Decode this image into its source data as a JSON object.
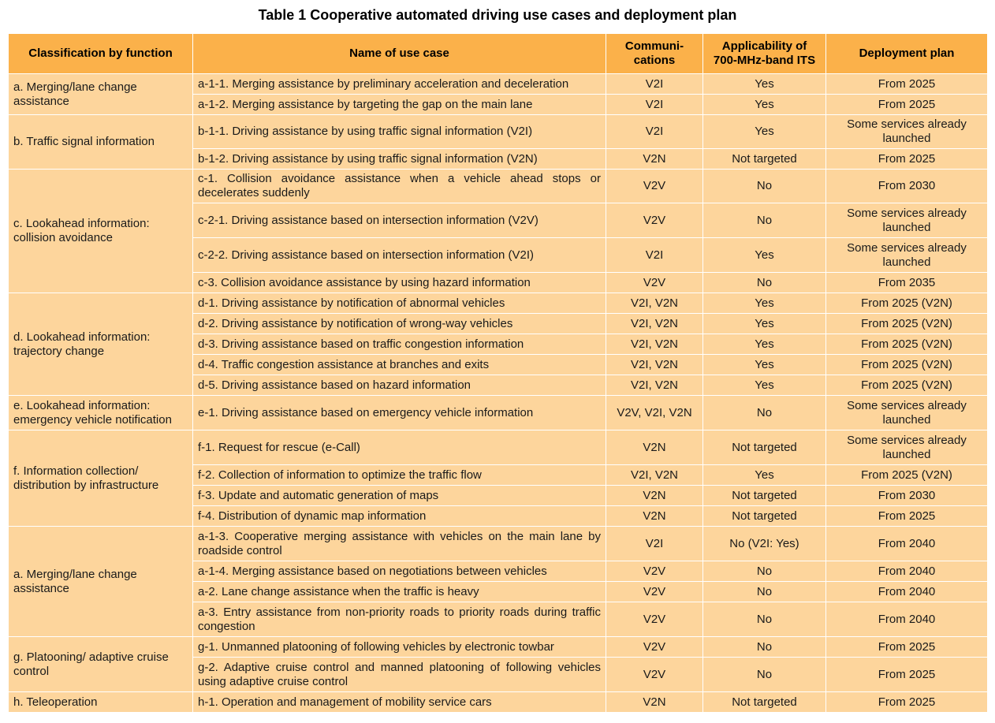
{
  "title": "Table 1  Cooperative automated driving use cases and deployment plan",
  "colors": {
    "header_bg": "#fbb14a",
    "cell_bg": "#fdd59c",
    "border": "#ffffff"
  },
  "headers": {
    "classification": "Classification by function",
    "use_case": "Name of use case",
    "communications": "Communi-\ncations",
    "applicability": "Applicability of\n700-MHz-band ITS",
    "deployment": "Deployment plan"
  },
  "groups": [
    {
      "classification": "a. Merging/lane change assistance",
      "rows": [
        {
          "use_case": "a-1-1. Merging assistance by preliminary acceleration and deceleration",
          "comm": "V2I",
          "appl": "Yes",
          "deploy": "From 2025"
        },
        {
          "use_case": "a-1-2. Merging assistance by targeting the gap on the main lane",
          "comm": "V2I",
          "appl": "Yes",
          "deploy": "From 2025"
        }
      ]
    },
    {
      "classification": "b. Traffic signal information",
      "rows": [
        {
          "use_case": "b-1-1. Driving assistance by using traffic signal information (V2I)",
          "comm": "V2I",
          "appl": "Yes",
          "deploy": "Some services already launched"
        },
        {
          "use_case": "b-1-2. Driving assistance by using traffic signal information (V2N)",
          "comm": "V2N",
          "appl": "Not targeted",
          "deploy": "From 2025"
        }
      ]
    },
    {
      "classification": "c. Lookahead information: collision avoidance",
      "rows": [
        {
          "use_case": "c-1. Collision avoidance assistance when a vehicle ahead stops or decelerates suddenly",
          "comm": "V2V",
          "appl": "No",
          "deploy": "From 2030"
        },
        {
          "use_case": "c-2-1. Driving assistance based on intersection information (V2V)",
          "comm": "V2V",
          "appl": "No",
          "deploy": "Some services already launched"
        },
        {
          "use_case": "c-2-2. Driving assistance based on intersection information (V2I)",
          "comm": "V2I",
          "appl": "Yes",
          "deploy": "Some services already launched"
        },
        {
          "use_case": "c-3. Collision avoidance assistance by using hazard information",
          "comm": "V2V",
          "appl": "No",
          "deploy": "From 2035"
        }
      ]
    },
    {
      "classification": "d.  Lookahead information: trajectory change",
      "rows": [
        {
          "use_case": "d-1. Driving assistance by notification of abnormal vehicles",
          "comm": "V2I, V2N",
          "appl": "Yes",
          "deploy": "From 2025 (V2N)"
        },
        {
          "use_case": "d-2.  Driving assistance by notification of wrong-way vehicles",
          "comm": "V2I, V2N",
          "appl": "Yes",
          "deploy": "From 2025 (V2N)"
        },
        {
          "use_case": "d-3. Driving assistance based on traffic congestion information",
          "comm": "V2I, V2N",
          "appl": "Yes",
          "deploy": "From 2025 (V2N)"
        },
        {
          "use_case": "d-4. Traffic congestion assistance at branches and exits",
          "comm": "V2I, V2N",
          "appl": "Yes",
          "deploy": "From 2025 (V2N)"
        },
        {
          "use_case": "d-5. Driving assistance based on hazard information",
          "comm": "V2I, V2N",
          "appl": "Yes",
          "deploy": "From 2025 (V2N)"
        }
      ]
    },
    {
      "classification": "e. Lookahead information: emergency vehicle notification",
      "rows": [
        {
          "use_case": "e-1. Driving assistance based on emergency vehicle information",
          "comm": "V2V, V2I, V2N",
          "appl": "No",
          "deploy": "Some services already launched"
        }
      ]
    },
    {
      "classification": "f. Information  collection/ distribution by infrastructure",
      "rows": [
        {
          "use_case": "f-1. Request for rescue (e-Call)",
          "comm": "V2N",
          "appl": "Not targeted",
          "deploy": "Some services already launched"
        },
        {
          "use_case": "f-2. Collection of information to optimize the traffic flow",
          "comm": "V2I, V2N",
          "appl": "Yes",
          "deploy": "From 2025 (V2N)"
        },
        {
          "use_case": "f-3. Update and automatic generation of maps",
          "comm": "V2N",
          "appl": "Not targeted",
          "deploy": "From 2030"
        },
        {
          "use_case": "f-4. Distribution of dynamic map information",
          "comm": "V2N",
          "appl": "Not targeted",
          "deploy": "From 2025"
        }
      ]
    },
    {
      "classification": "a. Merging/lane change assistance",
      "rows": [
        {
          "use_case": "a-1-3. Cooperative merging assistance with vehicles on the main lane by roadside control",
          "comm": "V2I",
          "appl": "No (V2I: Yes)",
          "deploy": "From 2040"
        },
        {
          "use_case": "a-1-4. Merging assistance based on negotiations between vehicles",
          "comm": "V2V",
          "appl": "No",
          "deploy": "From 2040"
        },
        {
          "use_case": "a-2. Lane change assistance when the traffic is heavy",
          "comm": "V2V",
          "appl": "No",
          "deploy": "From 2040"
        },
        {
          "use_case": "a-3. Entry assistance from non-priority roads to priority roads during traffic congestion",
          "comm": "V2V",
          "appl": "No",
          "deploy": "From 2040"
        }
      ]
    },
    {
      "classification": "g. Platooning/ adaptive cruise control",
      "rows": [
        {
          "use_case": "g-1. Unmanned platooning of following vehicles by electronic towbar",
          "comm": "V2V",
          "appl": "No",
          "deploy": "From 2025"
        },
        {
          "use_case": "g-2. Adaptive cruise control and manned platooning of following vehicles using adaptive cruise control",
          "comm": "V2V",
          "appl": "No",
          "deploy": "From 2025"
        }
      ]
    },
    {
      "classification": "h. Teleoperation",
      "rows": [
        {
          "use_case": "h-1. Operation and management of mobility service cars",
          "comm": "V2N",
          "appl": "Not targeted",
          "deploy": "From 2025"
        }
      ]
    }
  ]
}
